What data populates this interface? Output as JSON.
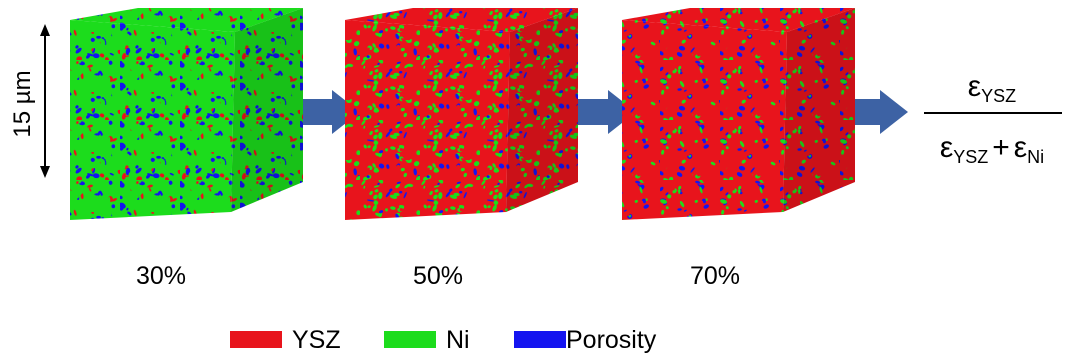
{
  "figure": {
    "scale_label": "15 µm",
    "cubes": [
      {
        "label": "30%",
        "fractions": {
          "ysz": 0.3,
          "ni": 0.7
        }
      },
      {
        "label": "50%",
        "fractions": {
          "ysz": 0.5,
          "ni": 0.5
        }
      },
      {
        "label": "70%",
        "fractions": {
          "ysz": 0.7,
          "ni": 0.3
        }
      }
    ],
    "formula": {
      "symbol": "ε",
      "numerator_sub": "YSZ",
      "denominator_sub_1": "YSZ",
      "plus": "+",
      "denominator_sub_2": "Ni"
    },
    "legend": [
      {
        "label": "YSZ",
        "color": "#e8141c"
      },
      {
        "label": "Ni",
        "color": "#1cdc1c"
      },
      {
        "label": "Porosity",
        "color": "#1414f0"
      }
    ],
    "arrow_color": "#3d62a4"
  }
}
